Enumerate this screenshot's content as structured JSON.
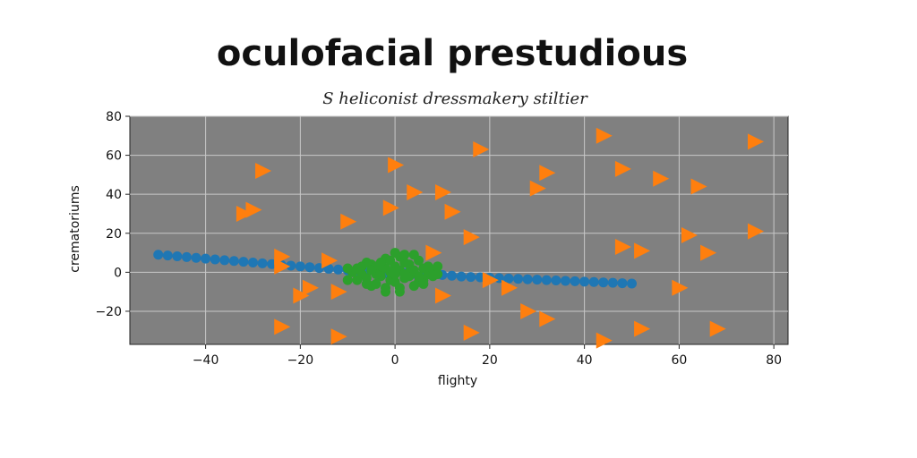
{
  "chart_data": {
    "type": "scatter",
    "title": "oculofacial prestudious",
    "subtitle": "S heliconist dressmakery stiltier",
    "xlabel": "flighty",
    "ylabel": "crematoriums",
    "xlim": [
      -56,
      83
    ],
    "ylim": [
      -37,
      80
    ],
    "xticks": [
      -40,
      -20,
      0,
      20,
      40,
      60,
      80
    ],
    "yticks": [
      -20,
      0,
      20,
      40,
      60,
      80
    ],
    "grid": true,
    "background": "#808080",
    "series": [
      {
        "color": "#1f77b4",
        "marker": "circle",
        "points": [
          [
            -50,
            9
          ],
          [
            -48,
            8.6
          ],
          [
            -46,
            8.2
          ],
          [
            -44,
            7.8
          ],
          [
            -42,
            7.4
          ],
          [
            -40,
            7
          ],
          [
            -38,
            6.6
          ],
          [
            -36,
            6.2
          ],
          [
            -34,
            5.8
          ],
          [
            -32,
            5.4
          ],
          [
            -30,
            5
          ],
          [
            -28,
            4.6
          ],
          [
            -26,
            4.2
          ],
          [
            -24,
            3.8
          ],
          [
            -22,
            3.4
          ],
          [
            -20,
            3
          ],
          [
            -18,
            2.6
          ],
          [
            -16,
            2.2
          ],
          [
            -14,
            1.8
          ],
          [
            -12,
            1.4
          ],
          [
            -10,
            1
          ],
          [
            -8,
            0.6
          ],
          [
            -6,
            0.2
          ],
          [
            -4,
            -0.2
          ],
          [
            -2,
            -0.6
          ],
          [
            0,
            0
          ],
          [
            2,
            -0.4
          ],
          [
            4,
            -0.8
          ],
          [
            6,
            -1.2
          ],
          [
            8,
            -1.6
          ],
          [
            10,
            -1.4
          ],
          [
            12,
            -1.8
          ],
          [
            14,
            -2.2
          ],
          [
            16,
            -2.4
          ],
          [
            18,
            -2.6
          ],
          [
            20,
            -2.8
          ],
          [
            22,
            -3
          ],
          [
            24,
            -3.2
          ],
          [
            26,
            -3.4
          ],
          [
            28,
            -3.6
          ],
          [
            30,
            -3.8
          ],
          [
            32,
            -4
          ],
          [
            34,
            -4.2
          ],
          [
            36,
            -4.4
          ],
          [
            38,
            -4.6
          ],
          [
            40,
            -4.8
          ],
          [
            42,
            -5
          ],
          [
            44,
            -5.2
          ],
          [
            46,
            -5.4
          ],
          [
            48,
            -5.6
          ],
          [
            50,
            -5.8
          ]
        ]
      },
      {
        "color": "#ff7f0e",
        "marker": "triangle-right",
        "points": [
          [
            -28,
            52
          ],
          [
            -32,
            30
          ],
          [
            -30,
            32
          ],
          [
            -10,
            26
          ],
          [
            -24,
            8
          ],
          [
            -24,
            3
          ],
          [
            -20,
            -12
          ],
          [
            -18,
            -8
          ],
          [
            -14,
            6
          ],
          [
            -12,
            -10
          ],
          [
            -24,
            -28
          ],
          [
            -12,
            -33
          ],
          [
            0,
            55
          ],
          [
            4,
            41
          ],
          [
            -1,
            33
          ],
          [
            10,
            41
          ],
          [
            12,
            31
          ],
          [
            8,
            10
          ],
          [
            10,
            -12
          ],
          [
            16,
            18
          ],
          [
            18,
            63
          ],
          [
            20,
            -4
          ],
          [
            24,
            -8
          ],
          [
            30,
            43
          ],
          [
            32,
            51
          ],
          [
            28,
            -20
          ],
          [
            32,
            -24
          ],
          [
            16,
            -31
          ],
          [
            44,
            70
          ],
          [
            48,
            53
          ],
          [
            56,
            48
          ],
          [
            64,
            44
          ],
          [
            48,
            13
          ],
          [
            52,
            11
          ],
          [
            62,
            19
          ],
          [
            66,
            10
          ],
          [
            76,
            67
          ],
          [
            76,
            21
          ],
          [
            60,
            -8
          ],
          [
            52,
            -29
          ],
          [
            68,
            -29
          ],
          [
            44,
            -35
          ]
        ]
      },
      {
        "color": "#2ca02c",
        "marker": "circle",
        "points": [
          [
            -8,
            2
          ],
          [
            -6,
            -3
          ],
          [
            -5,
            4
          ],
          [
            -4,
            -6
          ],
          [
            -3,
            1
          ],
          [
            -2,
            7
          ],
          [
            -1,
            -4
          ],
          [
            0,
            3
          ],
          [
            1,
            -8
          ],
          [
            2,
            5
          ],
          [
            3,
            -2
          ],
          [
            4,
            9
          ],
          [
            5,
            -5
          ],
          [
            6,
            2
          ],
          [
            7,
            -1
          ],
          [
            8,
            1
          ],
          [
            -7,
            -1
          ],
          [
            -6,
            5
          ],
          [
            -5,
            -7
          ],
          [
            -4,
            3
          ],
          [
            -3,
            -2
          ],
          [
            -2,
            -8
          ],
          [
            -1,
            6
          ],
          [
            0,
            -5
          ],
          [
            1,
            8
          ],
          [
            2,
            -3
          ],
          [
            3,
            4
          ],
          [
            4,
            -7
          ],
          [
            5,
            6
          ],
          [
            6,
            -4
          ],
          [
            7,
            3
          ],
          [
            8,
            -2
          ],
          [
            -9,
            0
          ],
          [
            -8,
            -4
          ],
          [
            -7,
            3
          ],
          [
            -1,
            0
          ],
          [
            1,
            1
          ],
          [
            -2,
            2
          ],
          [
            2,
            -1
          ],
          [
            0,
            -1
          ],
          [
            3,
            0
          ],
          [
            -3,
            5
          ],
          [
            4,
            1
          ],
          [
            -4,
            -1
          ],
          [
            5,
            -2
          ],
          [
            -5,
            1
          ],
          [
            6,
            -6
          ],
          [
            -6,
            -6
          ],
          [
            0,
            10
          ],
          [
            1,
            -10
          ],
          [
            -2,
            -10
          ],
          [
            2,
            9
          ],
          [
            9,
            -1
          ],
          [
            9,
            3
          ],
          [
            -10,
            -4
          ],
          [
            -10,
            2
          ]
        ]
      }
    ]
  }
}
